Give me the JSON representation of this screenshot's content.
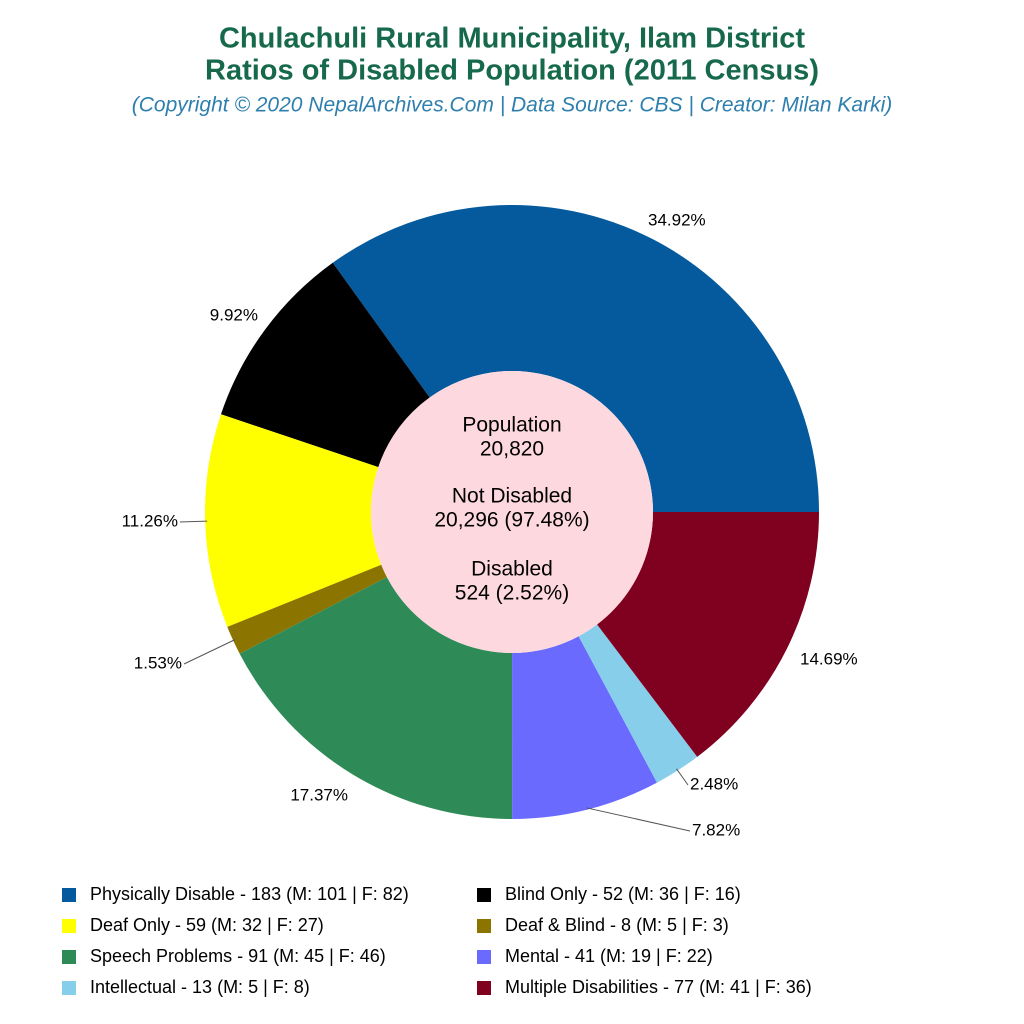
{
  "chart_data": {
    "type": "donut",
    "title": [
      "Chulachuli Rural Municipality, Ilam District",
      "Ratios of Disabled Population (2011 Census)"
    ],
    "subtitle": "(Copyright © 2020 NepalArchives.Com | Data Source: CBS | Creator: Milan Karki)",
    "categories": [
      "Physically Disable - 183 (M: 101 | F: 82)",
      "Blind Only - 52 (M: 36 | F: 16)",
      "Deaf Only - 59 (M: 32 | F: 27)",
      "Deaf & Blind - 8 (M: 5 | F: 3)",
      "Speech Problems - 91 (M: 45 | F: 46)",
      "Mental - 41 (M: 19 | F: 22)",
      "Intellectual - 13 (M: 5 | F: 8)",
      "Multiple Disabilities - 77 (M: 41 | F: 36)"
    ],
    "values": [
      34.92,
      9.92,
      11.26,
      1.53,
      17.37,
      7.82,
      2.48,
      14.69
    ],
    "value_labels": [
      "34.92%",
      "9.92%",
      "11.26%",
      "1.53%",
      "17.37%",
      "7.82%",
      "2.48%",
      "14.69%"
    ],
    "colors": [
      "#045a9c",
      "#000000",
      "#ffff00",
      "#8b7500",
      "#2e8b57",
      "#6a6aff",
      "#87ceeb",
      "#800020"
    ],
    "center": [
      "Population",
      "20,820",
      "Not Disabled",
      "20,296 (97.48%)",
      "Disabled",
      "524 (2.52%)"
    ]
  }
}
